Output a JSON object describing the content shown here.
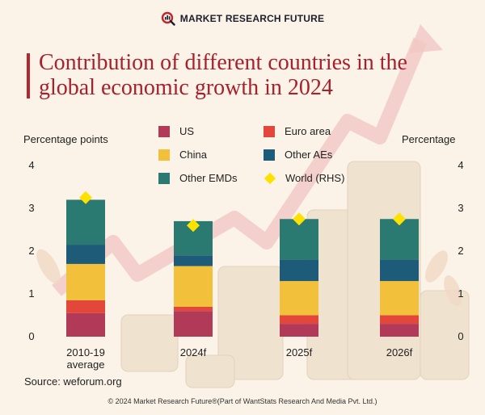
{
  "brand": {
    "name": "MARKET RESEARCH FUTURE"
  },
  "title": "Contribution of different countries in the global economic growth in 2024",
  "source": "Source: weforum.org",
  "footer": "© 2024 Market Research Future®(Part of WantStats Research And Media Pvt. Ltd.)",
  "colors": {
    "title": "#a8202b",
    "US": "#b13a58",
    "Euro area": "#e2473a",
    "China": "#f3c03c",
    "Other AEs": "#1d5b78",
    "Other EMDs": "#2a7a72",
    "World (RHS)": "#ffe100"
  },
  "chart_data": {
    "type": "bar",
    "stacked": true,
    "title": "Contribution of different countries in the global economic growth in 2024",
    "ylabel": "Percentage points",
    "y2label": "Percentage",
    "ylim": [
      0,
      4
    ],
    "y2lim": [
      0,
      4
    ],
    "yticks": [
      0,
      1,
      2,
      3,
      4
    ],
    "y2ticks": [
      0,
      1,
      2,
      3,
      4
    ],
    "categories": [
      "2010-19 average",
      "2024f",
      "2025f",
      "2026f"
    ],
    "category_lines": [
      [
        "2010-19",
        "average"
      ],
      [
        "2024f"
      ],
      [
        "2025f"
      ],
      [
        "2026f"
      ]
    ],
    "series": [
      {
        "name": "US",
        "values": [
          0.55,
          0.6,
          0.3,
          0.3
        ]
      },
      {
        "name": "Euro area",
        "values": [
          0.3,
          0.1,
          0.2,
          0.2
        ]
      },
      {
        "name": "China",
        "values": [
          0.85,
          0.95,
          0.8,
          0.8
        ]
      },
      {
        "name": "Other AEs",
        "values": [
          0.45,
          0.25,
          0.5,
          0.5
        ]
      },
      {
        "name": "Other EMDs",
        "values": [
          1.05,
          0.8,
          0.95,
          0.95
        ]
      }
    ],
    "line_series": {
      "name": "World (RHS)",
      "marker": "diamond",
      "values": [
        3.25,
        2.6,
        2.75,
        2.75
      ]
    },
    "legend": [
      "US",
      "Euro area",
      "China",
      "Other AEs",
      "Other EMDs",
      "World (RHS)"
    ]
  }
}
